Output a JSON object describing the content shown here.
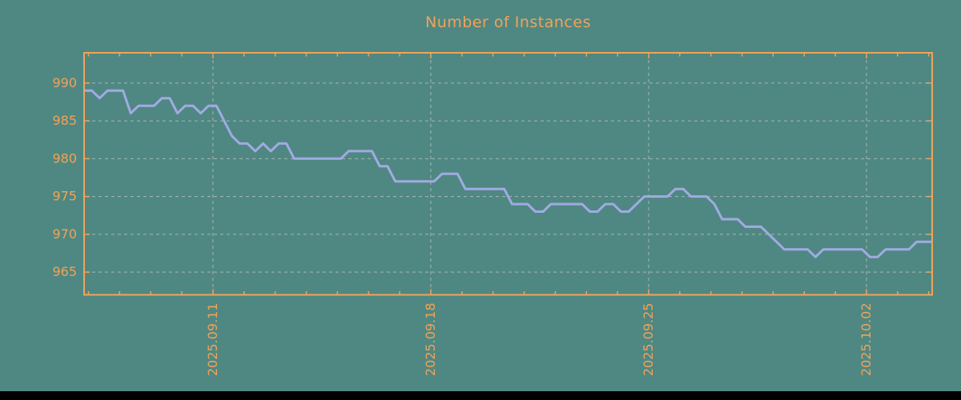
{
  "chart_data": {
    "type": "line",
    "title": "Number of Instances",
    "y_tick_labels": [
      "990",
      "985",
      "980",
      "975",
      "970",
      "965"
    ],
    "y_ticks": [
      990,
      985,
      980,
      975,
      970,
      965
    ],
    "ylim": [
      962,
      994
    ],
    "x_tick_labels": [
      "2025.09.11",
      "2025.09.18",
      "2025.09.25",
      "2025.10.02"
    ],
    "x_major_days": [
      0,
      7,
      14,
      21
    ],
    "x_minor_day_start": -4,
    "x_minor_day_end": 23,
    "x_day_range": [
      -4.14,
      23.11
    ],
    "sample_interval_days": 0.25,
    "grid": "dashed",
    "legend": "none",
    "series": [
      {
        "name": "instances",
        "values": [
          989,
          989,
          988,
          989,
          989,
          989,
          986,
          987,
          987,
          987,
          988,
          988,
          986,
          987,
          987,
          986,
          987,
          987,
          985,
          983,
          982,
          982,
          981,
          982,
          981,
          982,
          982,
          980,
          980,
          980,
          980,
          980,
          980,
          980,
          981,
          981,
          981,
          981,
          979,
          979,
          977,
          977,
          977,
          977,
          977,
          977,
          978,
          978,
          978,
          976,
          976,
          976,
          976,
          976,
          976,
          974,
          974,
          974,
          973,
          973,
          974,
          974,
          974,
          974,
          974,
          973,
          973,
          974,
          974,
          973,
          973,
          974,
          975,
          975,
          975,
          975,
          976,
          976,
          975,
          975,
          975,
          974,
          972,
          972,
          972,
          971,
          971,
          971,
          970,
          969,
          968,
          968,
          968,
          968,
          967,
          968,
          968,
          968,
          968,
          968,
          968,
          967,
          967,
          968,
          968,
          968,
          968,
          969,
          969,
          969
        ]
      }
    ],
    "colors": {
      "background": "#4f8882",
      "axis": "#f0a35a",
      "line": "#a1aae3",
      "grid": "#b9beba",
      "footer_bar": "#000000"
    }
  }
}
